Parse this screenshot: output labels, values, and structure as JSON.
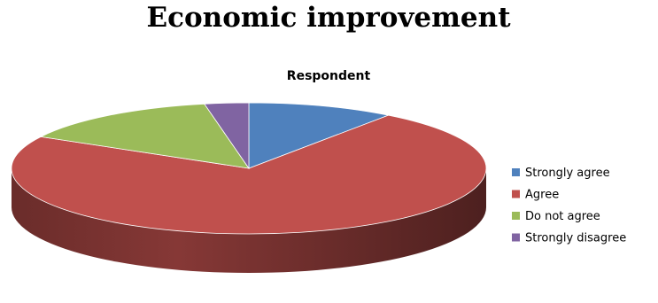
{
  "chart_data": {
    "type": "pie",
    "title": "Economic improvement",
    "subtitle": "Respondent",
    "categories": [
      "Strongly agree",
      "Agree",
      "Do not agree",
      "Strongly disagree"
    ],
    "values": [
      10,
      73,
      14,
      3
    ],
    "colors": [
      "#4f81bd",
      "#c0504d",
      "#9bbb59",
      "#8064a2"
    ],
    "three_d": true,
    "legend_position": "right"
  }
}
